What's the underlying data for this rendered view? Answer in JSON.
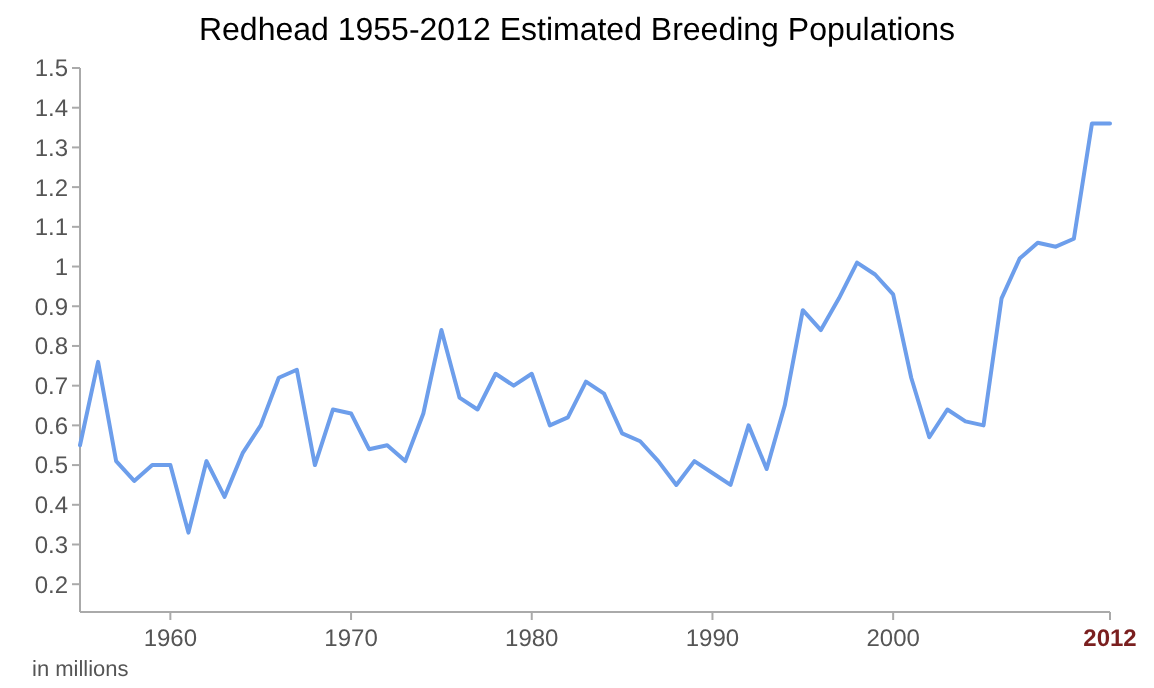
{
  "chart_data": {
    "type": "line",
    "title": "Redhead 1955-2012 Estimated Breeding Populations",
    "annotations": [
      "in millions"
    ],
    "x": [
      1955,
      1956,
      1957,
      1958,
      1959,
      1960,
      1961,
      1962,
      1963,
      1964,
      1965,
      1966,
      1967,
      1968,
      1969,
      1970,
      1971,
      1972,
      1973,
      1974,
      1975,
      1976,
      1977,
      1978,
      1979,
      1980,
      1981,
      1982,
      1983,
      1984,
      1985,
      1986,
      1987,
      1988,
      1989,
      1990,
      1991,
      1992,
      1993,
      1994,
      1995,
      1996,
      1997,
      1998,
      1999,
      2000,
      2001,
      2002,
      2003,
      2004,
      2005,
      2006,
      2007,
      2008,
      2009,
      2010,
      2011,
      2012
    ],
    "series": [
      {
        "color": "#6d9eeb",
        "values": [
          0.55,
          0.76,
          0.51,
          0.46,
          0.5,
          0.5,
          0.33,
          0.51,
          0.42,
          0.53,
          0.6,
          0.72,
          0.74,
          0.5,
          0.64,
          0.63,
          0.54,
          0.55,
          0.51,
          0.63,
          0.84,
          0.67,
          0.64,
          0.73,
          0.7,
          0.73,
          0.6,
          0.62,
          0.71,
          0.68,
          0.58,
          0.56,
          0.51,
          0.45,
          0.51,
          0.48,
          0.45,
          0.6,
          0.49,
          0.65,
          0.89,
          0.84,
          0.92,
          1.01,
          0.98,
          0.93,
          0.72,
          0.57,
          0.64,
          0.61,
          0.6,
          0.92,
          1.02,
          1.06,
          1.05,
          1.07,
          1.36,
          1.36
        ]
      }
    ],
    "xlim": [
      1955,
      2012
    ],
    "xticks": [
      1960,
      1970,
      1980,
      1990,
      2000,
      2012
    ],
    "ylim": [
      0.13,
      1.5
    ],
    "yticks": [
      0.2,
      0.3,
      0.4,
      0.5,
      0.6,
      0.7,
      0.8,
      0.9,
      1,
      1.1,
      1.2,
      1.3,
      1.4,
      1.5
    ],
    "grid": false
  }
}
